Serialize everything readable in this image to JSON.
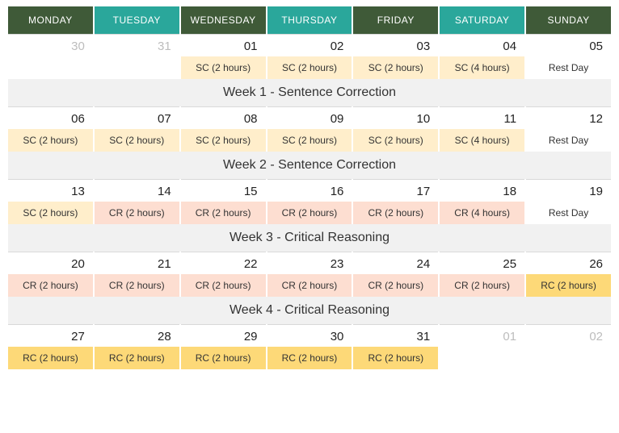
{
  "colors": {
    "header_green": "#3f5a38",
    "header_teal": "#2aa79b",
    "sc_bg": "#ffeecb",
    "cr_bg": "#fdded1",
    "rc_bg": "#fdd978",
    "week_bg": "#f1f1f1",
    "prev_text": "#bdbdbd"
  },
  "day_headers": [
    {
      "label": "MONDAY",
      "color": "#3f5a38"
    },
    {
      "label": "TUESDAY",
      "color": "#2aa79b"
    },
    {
      "label": "WEDNESDAY",
      "color": "#3f5a38"
    },
    {
      "label": "THURSDAY",
      "color": "#2aa79b"
    },
    {
      "label": "FRIDAY",
      "color": "#3f5a38"
    },
    {
      "label": "SATURDAY",
      "color": "#2aa79b"
    },
    {
      "label": "SUNDAY",
      "color": "#3f5a38"
    }
  ],
  "weeks": [
    {
      "dates": [
        {
          "d": "30",
          "prev": true
        },
        {
          "d": "31",
          "prev": true
        },
        {
          "d": "01"
        },
        {
          "d": "02"
        },
        {
          "d": "03"
        },
        {
          "d": "04"
        },
        {
          "d": "05"
        }
      ],
      "events": [
        {},
        {},
        {
          "t": "SC (2 hours)",
          "bg": "#ffeecb"
        },
        {
          "t": "SC (2 hours)",
          "bg": "#ffeecb"
        },
        {
          "t": "SC (2 hours)",
          "bg": "#ffeecb"
        },
        {
          "t": "SC (4 hours)",
          "bg": "#ffeecb"
        },
        {
          "t": "Rest Day"
        }
      ],
      "label": "Week 1 - Sentence Correction"
    },
    {
      "dates": [
        {
          "d": "06"
        },
        {
          "d": "07"
        },
        {
          "d": "08"
        },
        {
          "d": "09"
        },
        {
          "d": "10"
        },
        {
          "d": "11"
        },
        {
          "d": "12"
        }
      ],
      "events": [
        {
          "t": "SC (2 hours)",
          "bg": "#ffeecb"
        },
        {
          "t": "SC (2 hours)",
          "bg": "#ffeecb"
        },
        {
          "t": "SC (2 hours)",
          "bg": "#ffeecb"
        },
        {
          "t": "SC (2 hours)",
          "bg": "#ffeecb"
        },
        {
          "t": "SC (2 hours)",
          "bg": "#ffeecb"
        },
        {
          "t": "SC (4 hours)",
          "bg": "#ffeecb"
        },
        {
          "t": "Rest Day"
        }
      ],
      "label": "Week 2 - Sentence Correction"
    },
    {
      "dates": [
        {
          "d": "13"
        },
        {
          "d": "14"
        },
        {
          "d": "15"
        },
        {
          "d": "16"
        },
        {
          "d": "17"
        },
        {
          "d": "18"
        },
        {
          "d": "19"
        }
      ],
      "events": [
        {
          "t": "SC (2 hours)",
          "bg": "#ffeecb"
        },
        {
          "t": "CR (2 hours)",
          "bg": "#fdded1"
        },
        {
          "t": "CR (2 hours)",
          "bg": "#fdded1"
        },
        {
          "t": "CR (2 hours)",
          "bg": "#fdded1"
        },
        {
          "t": "CR (2 hours)",
          "bg": "#fdded1"
        },
        {
          "t": "CR (4 hours)",
          "bg": "#fdded1"
        },
        {
          "t": "Rest Day"
        }
      ],
      "label": "Week 3 - Critical Reasoning"
    },
    {
      "dates": [
        {
          "d": "20"
        },
        {
          "d": "21"
        },
        {
          "d": "22"
        },
        {
          "d": "23"
        },
        {
          "d": "24"
        },
        {
          "d": "25"
        },
        {
          "d": "26"
        }
      ],
      "events": [
        {
          "t": "CR (2 hours)",
          "bg": "#fdded1"
        },
        {
          "t": "CR (2 hours)",
          "bg": "#fdded1"
        },
        {
          "t": "CR (2 hours)",
          "bg": "#fdded1"
        },
        {
          "t": "CR (2 hours)",
          "bg": "#fdded1"
        },
        {
          "t": "CR (2 hours)",
          "bg": "#fdded1"
        },
        {
          "t": "CR (2 hours)",
          "bg": "#fdded1"
        },
        {
          "t": "RC (2 hours)",
          "bg": "#fdd978"
        }
      ],
      "label": "Week 4 - Critical Reasoning"
    },
    {
      "dates": [
        {
          "d": "27"
        },
        {
          "d": "28"
        },
        {
          "d": "29"
        },
        {
          "d": "30"
        },
        {
          "d": "31"
        },
        {
          "d": "01",
          "prev": true
        },
        {
          "d": "02",
          "prev": true
        }
      ],
      "events": [
        {
          "t": "RC (2 hours)",
          "bg": "#fdd978"
        },
        {
          "t": "RC (2 hours)",
          "bg": "#fdd978"
        },
        {
          "t": "RC (2 hours)",
          "bg": "#fdd978"
        },
        {
          "t": "RC (2 hours)",
          "bg": "#fdd978"
        },
        {
          "t": "RC (2 hours)",
          "bg": "#fdd978"
        },
        {},
        {}
      ],
      "label": null
    }
  ]
}
